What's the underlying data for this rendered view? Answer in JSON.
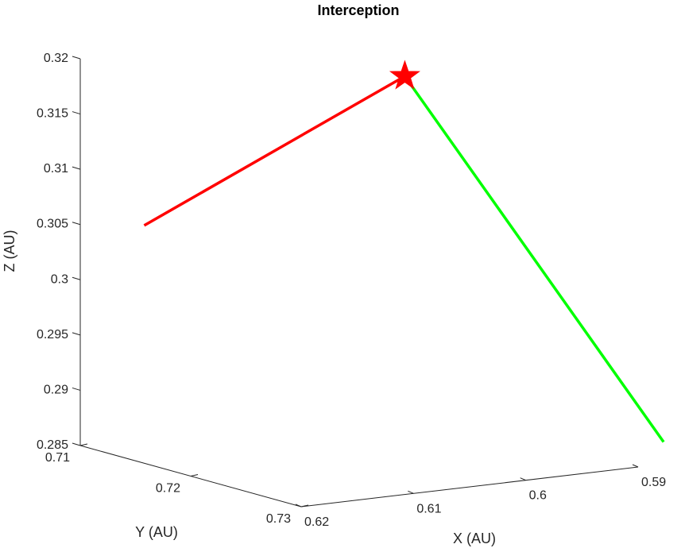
{
  "chart_data": {
    "type": "line",
    "projection": "3d",
    "title": "Interception",
    "xlabel": "X (AU)",
    "ylabel": "Y (AU)",
    "zlabel": "Z (AU)",
    "xlim": [
      0.62,
      0.59
    ],
    "ylim": [
      0.71,
      0.73
    ],
    "zlim": [
      0.285,
      0.32
    ],
    "x_ticks": [
      "0.62",
      "0.61",
      "0.6",
      "0.59"
    ],
    "y_ticks": [
      "0.71",
      "0.72",
      "0.73"
    ],
    "z_ticks": [
      "0.285",
      "0.29",
      "0.295",
      "0.3",
      "0.305",
      "0.31",
      "0.315",
      "0.32"
    ],
    "grid": false,
    "series": [
      {
        "color": "#ff0000",
        "points": [
          [
            0.6207,
            0.7165,
            0.3068
          ],
          [
            0.5912,
            0.7101,
            0.315
          ]
        ]
      },
      {
        "color": "#00ff00",
        "points": [
          [
            0.5895,
            0.7318,
            0.2877
          ],
          [
            0.5912,
            0.7101,
            0.315
          ]
        ]
      }
    ],
    "markers": [
      {
        "shape": "star",
        "color": "#ff0000",
        "point": [
          0.5912,
          0.7101,
          0.315
        ]
      }
    ]
  }
}
